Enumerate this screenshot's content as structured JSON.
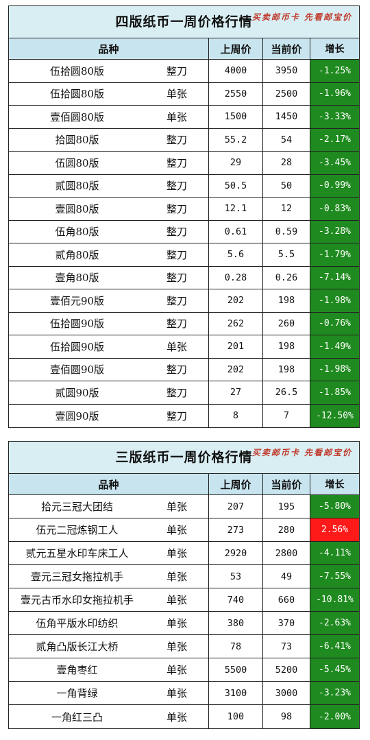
{
  "colors": {
    "down": "#1f8a1f",
    "up": "#ff1a1a",
    "title_bg": "#d9eef3",
    "header_bg": "#c8e4ee"
  },
  "columns": {
    "name": "品种",
    "prev": "上周价",
    "cur": "当前价",
    "chg": "增长"
  },
  "slogan": "买卖邮币卡 先看邮宝价",
  "table1": {
    "title": "四版纸币一周价格行情",
    "rows": [
      {
        "name": "伍拾圆80版",
        "type": "整刀",
        "prev": "4000",
        "cur": "3950",
        "chg": "-1.25%"
      },
      {
        "name": "伍拾圆80版",
        "type": "单张",
        "prev": "2550",
        "cur": "2500",
        "chg": "-1.96%"
      },
      {
        "name": "壹佰圆80版",
        "type": "单张",
        "prev": "1500",
        "cur": "1450",
        "chg": "-3.33%"
      },
      {
        "name": "拾圆80版",
        "type": "整刀",
        "prev": "55.2",
        "cur": "54",
        "chg": "-2.17%"
      },
      {
        "name": "伍圆80版",
        "type": "整刀",
        "prev": "29",
        "cur": "28",
        "chg": "-3.45%"
      },
      {
        "name": "贰圆80版",
        "type": "整刀",
        "prev": "50.5",
        "cur": "50",
        "chg": "-0.99%"
      },
      {
        "name": "壹圆80版",
        "type": "整刀",
        "prev": "12.1",
        "cur": "12",
        "chg": "-0.83%"
      },
      {
        "name": "伍角80版",
        "type": "整刀",
        "prev": "0.61",
        "cur": "0.59",
        "chg": "-3.28%"
      },
      {
        "name": "贰角80版",
        "type": "整刀",
        "prev": "5.6",
        "cur": "5.5",
        "chg": "-1.79%"
      },
      {
        "name": "壹角80版",
        "type": "整刀",
        "prev": "0.28",
        "cur": "0.26",
        "chg": "-7.14%"
      },
      {
        "name": "壹佰元90版",
        "type": "整刀",
        "prev": "202",
        "cur": "198",
        "chg": "-1.98%"
      },
      {
        "name": "伍拾圆90版",
        "type": "整刀",
        "prev": "262",
        "cur": "260",
        "chg": "-0.76%"
      },
      {
        "name": "伍拾圆90版",
        "type": "单张",
        "prev": "201",
        "cur": "198",
        "chg": "-1.49%"
      },
      {
        "name": "壹佰圆90版",
        "type": "整刀",
        "prev": "202",
        "cur": "198",
        "chg": "-1.98%"
      },
      {
        "name": "贰圆90版",
        "type": "整刀",
        "prev": "27",
        "cur": "26.5",
        "chg": "-1.85%"
      },
      {
        "name": "壹圆90版",
        "type": "整刀",
        "prev": "8",
        "cur": "7",
        "chg": "-12.50%"
      }
    ]
  },
  "table2": {
    "title": "三版纸币一周价格行情",
    "rows": [
      {
        "name": "拾元三冠大团结",
        "type": "单张",
        "prev": "207",
        "cur": "195",
        "chg": "-5.80%"
      },
      {
        "name": "伍元二冠炼钢工人",
        "type": "单张",
        "prev": "273",
        "cur": "280",
        "chg": "2.56%"
      },
      {
        "name": "贰元五星水印车床工人",
        "type": "单张",
        "prev": "2920",
        "cur": "2800",
        "chg": "-4.11%"
      },
      {
        "name": "壹元三冠女拖拉机手",
        "type": "单张",
        "prev": "53",
        "cur": "49",
        "chg": "-7.55%"
      },
      {
        "name": "壹元古币水印女拖拉机手",
        "type": "单张",
        "prev": "740",
        "cur": "660",
        "chg": "-10.81%"
      },
      {
        "name": "伍角平版水印纺织",
        "type": "单张",
        "prev": "380",
        "cur": "370",
        "chg": "-2.63%"
      },
      {
        "name": "贰角凸版长江大桥",
        "type": "单张",
        "prev": "78",
        "cur": "73",
        "chg": "-6.41%"
      },
      {
        "name": "壹角枣红",
        "type": "单张",
        "prev": "5500",
        "cur": "5200",
        "chg": "-5.45%"
      },
      {
        "name": "一角背绿",
        "type": "单张",
        "prev": "3100",
        "cur": "3000",
        "chg": "-3.23%"
      },
      {
        "name": "一角红三凸",
        "type": "单张",
        "prev": "100",
        "cur": "98",
        "chg": "-2.00%"
      }
    ]
  }
}
